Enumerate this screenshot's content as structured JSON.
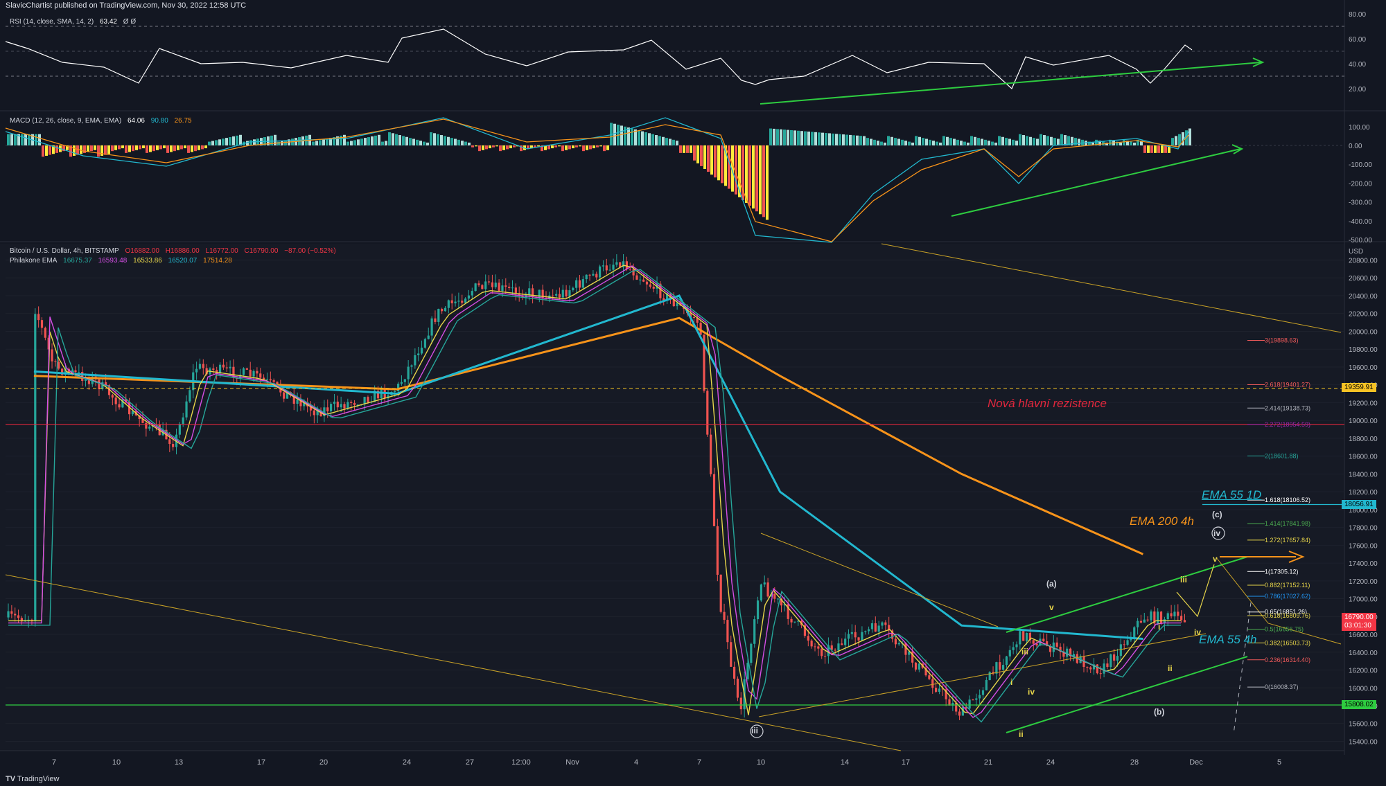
{
  "header": "SlavicChartist published on TradingView.com, Nov 30, 2022 12:58 UTC",
  "footer": "TradingView",
  "rsi": {
    "label": "RSI (14, close, SMA, 14, 2)",
    "value": "63.42",
    "symbols": "Ø Ø",
    "ticks": [
      "80.00",
      "60.00",
      "40.00",
      "20.00"
    ]
  },
  "macd": {
    "label": "MACD (12, 26, close, 9, EMA, EMA)",
    "v1": "64.06",
    "v2": "90.80",
    "v3": "26.75",
    "ticks": [
      "100.00",
      "0.00",
      "-100.00",
      "-200.00",
      "-300.00",
      "-400.00",
      "-500.00"
    ]
  },
  "price": {
    "title": "Bitcoin / U.S. Dollar, 4h, BITSTAMP",
    "o": "O16882.00",
    "h": "H16886.00",
    "l": "L16772.00",
    "c": "C16790.00",
    "chg": "−87.00 (−0.52%)",
    "ema_label": "Philakone EMA",
    "ema_values": [
      "16675.37",
      "16593.48",
      "16533.86",
      "16520.07",
      "17514.28"
    ],
    "currency": "USD",
    "ticks": [
      "20800.00",
      "20600.00",
      "20400.00",
      "20200.00",
      "20000.00",
      "19800.00",
      "19600.00",
      "19400.00",
      "19200.00",
      "19000.00",
      "18800.00",
      "18600.00",
      "18400.00",
      "18200.00",
      "18000.00",
      "17800.00",
      "17600.00",
      "17400.00",
      "17200.00",
      "17000.00",
      "16800.00",
      "16600.00",
      "16400.00",
      "16200.00",
      "16000.00",
      "15800.00",
      "15600.00",
      "15400.00"
    ]
  },
  "xaxis": [
    "7",
    "10",
    "13",
    "17",
    "20",
    "24",
    "27",
    "12:00",
    "Nov",
    "4",
    "7",
    "10",
    "14",
    "17",
    "21",
    "24",
    "28",
    "Dec",
    "5"
  ],
  "annotations": {
    "resistance": "Nová hlavní rezistence",
    "ema55_1d": "EMA 55 1D",
    "ema200_4h": "EMA 200 4h",
    "ema55_4h": "EMA 55 4h"
  },
  "waves": {
    "iii_circle": "iii",
    "iv_circle": "iv",
    "c": "(c)",
    "a": "(a)",
    "b": "(b)",
    "v1": "v",
    "iii1": "iii",
    "iv1": "iv",
    "ii1": "ii",
    "i1": "i",
    "i2": "i",
    "ii2": "ii",
    "iii2": "iii",
    "iv2": "iv",
    "v2": "v"
  },
  "price_boxes": {
    "b1": "19359.91",
    "b2": "18056.91",
    "b3": "16790.00",
    "b3b": "03:01:30",
    "b4": "15808.02"
  },
  "fib_levels": [
    {
      "label": "3(19898.63)",
      "color": "#f05a5a",
      "value": 19898.63
    },
    {
      "label": "2.618(19401.27)",
      "color": "#f05a5a",
      "value": 19401.27
    },
    {
      "label": "2.414(19138.73)",
      "color": "#b2b5be",
      "value": 19138.73
    },
    {
      "label": "2.272(18954.59)",
      "color": "#9c27b0",
      "value": 18954.59
    },
    {
      "label": "2(18601.88)",
      "color": "#26a69a",
      "value": 18601.88
    },
    {
      "label": "1.618(18106.52)",
      "color": "#ffffff",
      "value": 18106.52
    },
    {
      "label": "1.414(17841.98)",
      "color": "#4caf50",
      "value": 17841.98
    },
    {
      "label": "1.272(17657.84)",
      "color": "#e8d64a",
      "value": 17657.84
    },
    {
      "label": "1(17305.12)",
      "color": "#ffffff",
      "value": 17305.12
    },
    {
      "label": "0.882(17152.11)",
      "color": "#e8d64a",
      "value": 17152.11
    },
    {
      "label": "0.786(17027.62)",
      "color": "#2196f3",
      "value": 17027.62
    },
    {
      "label": "0.65(16851.26)",
      "color": "#ffffff",
      "value": 16851.26
    },
    {
      "label": "0.618(16809.76)",
      "color": "#e8d64a",
      "value": 16809.76
    },
    {
      "label": "0.5(16656.75)",
      "color": "#4caf50",
      "value": 16656.75
    },
    {
      "label": "0.382(16503.73)",
      "color": "#e8d64a",
      "value": 16503.73
    },
    {
      "label": "0.236(16314.40)",
      "color": "#f05a5a",
      "value": 16314.4
    },
    {
      "label": "0(16008.37)",
      "color": "#b2b5be",
      "value": 16008.37
    }
  ],
  "colors": {
    "bull": "#26a69a",
    "bear": "#ef5350",
    "ema55": "#22b8cf",
    "ema200": "#f7931a",
    "green": "#2ecc40",
    "red": "#f23645",
    "resist": "#e3273d"
  },
  "chart_data": {
    "type": "candlestick",
    "title": "Bitcoin / U.S. Dollar, 4h, BITSTAMP",
    "ylabel": "USD",
    "ylim": [
      15300,
      20850
    ],
    "x_ticks": [
      "7",
      "10",
      "13",
      "17",
      "20",
      "24",
      "27",
      "12:00",
      "Nov",
      "4",
      "7",
      "10",
      "14",
      "17",
      "21",
      "24",
      "28",
      "Dec",
      "5"
    ],
    "price_path": [
      {
        "date": "Oct 6",
        "price": 20300
      },
      {
        "date": "Oct 7",
        "price": 19600
      },
      {
        "date": "Oct 9",
        "price": 19450
      },
      {
        "date": "Oct 11",
        "price": 19050
      },
      {
        "date": "Oct 13",
        "price": 18750
      },
      {
        "date": "Oct 14",
        "price": 19600
      },
      {
        "date": "Oct 17",
        "price": 19500
      },
      {
        "date": "Oct 20",
        "price": 19100
      },
      {
        "date": "Oct 24",
        "price": 19350
      },
      {
        "date": "Oct 26",
        "price": 20200
      },
      {
        "date": "Oct 28",
        "price": 20500
      },
      {
        "date": "Nov 1",
        "price": 20400
      },
      {
        "date": "Nov 4",
        "price": 20800
      },
      {
        "date": "Nov 8",
        "price": 20100
      },
      {
        "date": "Nov 9",
        "price": 17000
      },
      {
        "date": "Nov 10",
        "price": 15700
      },
      {
        "date": "Nov 11",
        "price": 17200
      },
      {
        "date": "Nov 14",
        "price": 16400
      },
      {
        "date": "Nov 17",
        "price": 16700
      },
      {
        "date": "Nov 21",
        "price": 15700
      },
      {
        "date": "Nov 24",
        "price": 16600
      },
      {
        "date": "Nov 28",
        "price": 16200
      },
      {
        "date": "Nov 30",
        "price": 16790
      }
    ],
    "ema_200_4h": [
      {
        "date": "Oct 6",
        "price": 19500
      },
      {
        "date": "Oct 24",
        "price": 19350
      },
      {
        "date": "Nov 7",
        "price": 20150
      },
      {
        "date": "Nov 12",
        "price": 19500
      },
      {
        "date": "Nov 21",
        "price": 18400
      },
      {
        "date": "Nov 30",
        "price": 17500
      }
    ],
    "ema_55_4h": [
      {
        "date": "Oct 6",
        "price": 19550
      },
      {
        "date": "Oct 24",
        "price": 19300
      },
      {
        "date": "Nov 7",
        "price": 20400
      },
      {
        "date": "Nov 12",
        "price": 18200
      },
      {
        "date": "Nov 21",
        "price": 16700
      },
      {
        "date": "Nov 30",
        "price": 16550
      }
    ],
    "horizontal_levels": [
      19359.91,
      18956,
      18056.91,
      15808.02
    ]
  }
}
